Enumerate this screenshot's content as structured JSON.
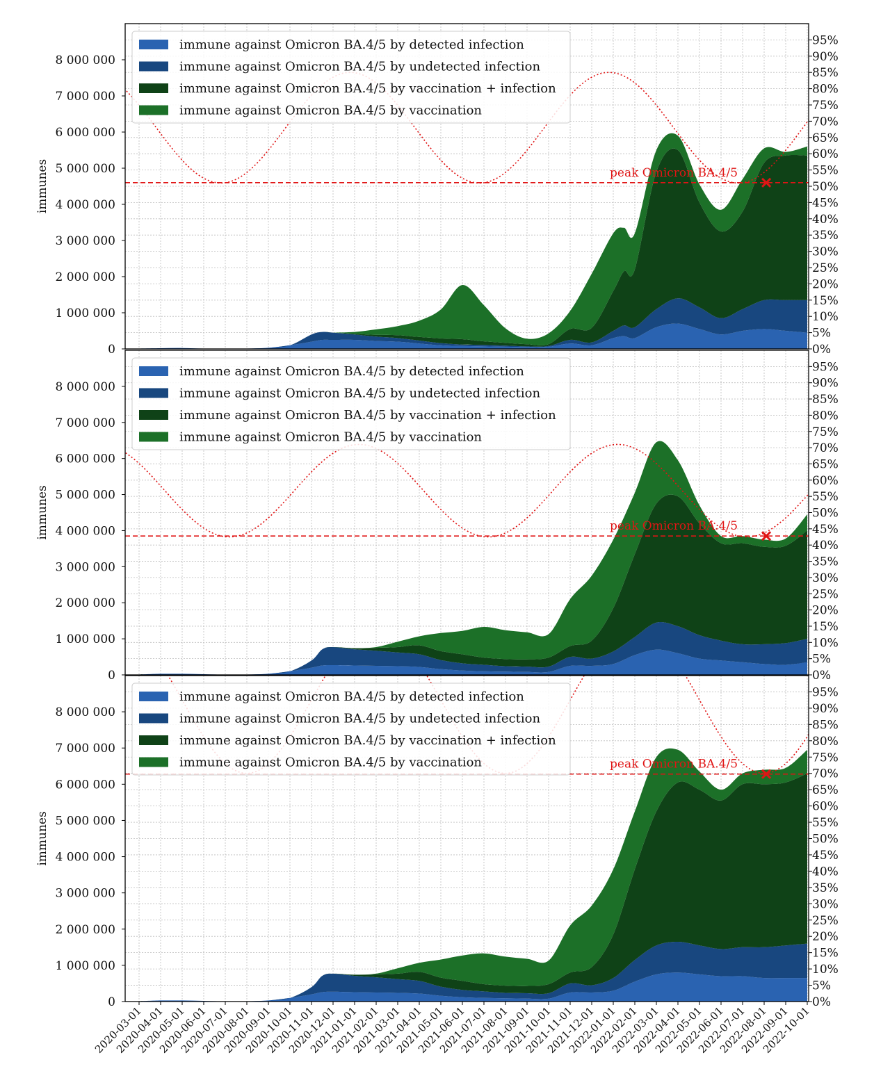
{
  "colors": {
    "detected": "#2a63b1",
    "undetected": "#18477f",
    "vacc_infection": "#0f4217",
    "vaccination": "#1c7028",
    "peak": "#e01515",
    "grid": "#bcbcbc"
  },
  "legend_labels": [
    "immune against Omicron BA.4/5 by detected infection",
    "immune against Omicron BA.4/5 by undetected infection",
    "immune against Omicron BA.4/5 by vaccination + infection",
    "immune against Omicron BA.4/5 by vaccination"
  ],
  "x_ticks": [
    "2020-03-01",
    "2020-04-01",
    "2020-05-01",
    "2020-06-01",
    "2020-07-01",
    "2020-08-01",
    "2020-09-01",
    "2020-10-01",
    "2020-11-01",
    "2020-12-01",
    "2021-01-01",
    "2021-02-01",
    "2021-03-01",
    "2021-04-01",
    "2021-05-01",
    "2021-06-01",
    "2021-07-01",
    "2021-08-01",
    "2021-09-01",
    "2021-10-01",
    "2021-11-01",
    "2021-12-01",
    "2022-01-01",
    "2022-02-01",
    "2022-03-01",
    "2022-04-01",
    "2022-05-01",
    "2022-06-01",
    "2022-07-01",
    "2022-08-01",
    "2022-09-01",
    "2022-10-01"
  ],
  "y_ticks": [
    "0",
    "1 000 000",
    "2 000 000",
    "3 000 000",
    "4 000 000",
    "5 000 000",
    "6 000 000",
    "7 000 000",
    "8 000 000"
  ],
  "pct_ticks": [
    "0%",
    "5%",
    "10%",
    "15%",
    "20%",
    "25%",
    "30%",
    "35%",
    "40%",
    "45%",
    "50%",
    "55%",
    "60%",
    "65%",
    "70%",
    "75%",
    "80%",
    "85%",
    "90%",
    "95%"
  ],
  "chart_data": [
    {
      "type": "area",
      "title": "",
      "ylabel": "immunes",
      "ylim": [
        0,
        9000000
      ],
      "y2lim": [
        0,
        1
      ],
      "stacked": true,
      "x_months": [
        0,
        1,
        2,
        3,
        4,
        5,
        6,
        7,
        8,
        8.5,
        9,
        10,
        11,
        12,
        13,
        14,
        15,
        16,
        17,
        18,
        19,
        20,
        21,
        22,
        22.5,
        23,
        24,
        25,
        26,
        27,
        28,
        29,
        30,
        31
      ],
      "series": [
        {
          "name": "immune against Omicron BA.4/5 by detected infection",
          "values": [
            10000,
            20000,
            25000,
            10000,
            5000,
            10000,
            30000,
            100000,
            200000,
            250000,
            250000,
            250000,
            220000,
            200000,
            150000,
            100000,
            80000,
            70000,
            60000,
            50000,
            60000,
            150000,
            100000,
            300000,
            350000,
            300000,
            600000,
            700000,
            550000,
            400000,
            500000,
            550000,
            500000,
            450000
          ]
        },
        {
          "name": "immune against Omicron BA.4/5 by undetected infection",
          "values": [
            0,
            0,
            0,
            0,
            0,
            0,
            0,
            0,
            200000,
            220000,
            200000,
            150000,
            120000,
            100000,
            80000,
            60000,
            40000,
            40000,
            30000,
            20000,
            20000,
            100000,
            80000,
            200000,
            300000,
            300000,
            500000,
            700000,
            600000,
            450000,
            600000,
            800000,
            850000,
            900000
          ]
        },
        {
          "name": "immune against Omicron BA.4/5 by vaccination + infection",
          "values": [
            0,
            0,
            0,
            0,
            0,
            0,
            0,
            0,
            0,
            0,
            0,
            20000,
            50000,
            80000,
            100000,
            130000,
            150000,
            100000,
            80000,
            60000,
            50000,
            300000,
            400000,
            1100000,
            1500000,
            1600000,
            3800000,
            4100000,
            2900000,
            2400000,
            2700000,
            3800000,
            4000000,
            4000000
          ]
        },
        {
          "name": "immune against Omicron BA.4/5 by vaccination",
          "values": [
            0,
            0,
            0,
            0,
            0,
            0,
            0,
            0,
            0,
            0,
            0,
            50000,
            150000,
            250000,
            450000,
            800000,
            1500000,
            1000000,
            400000,
            150000,
            300000,
            500000,
            1500000,
            1600000,
            1200000,
            1000000,
            600000,
            400000,
            500000,
            600000,
            900000,
            400000,
            100000,
            250000
          ]
        }
      ],
      "threshold": {
        "label": "peak Omicron BA.4/5",
        "value": 4600000,
        "peak_x": 29.1
      },
      "seasonal_curve": {
        "min_fraction": 0.51,
        "max_fraction": 0.85,
        "period_months": 12,
        "min_at_month": 3.8
      }
    },
    {
      "type": "area",
      "title": "",
      "ylabel": "immunes",
      "ylim": [
        0,
        9000000
      ],
      "y2lim": [
        0,
        1
      ],
      "stacked": true,
      "x_months": [
        0,
        1,
        2,
        3,
        4,
        5,
        6,
        7,
        8,
        8.5,
        9,
        10,
        11,
        12,
        13,
        14,
        15,
        16,
        17,
        18,
        19,
        20,
        21,
        22,
        23,
        24,
        25,
        26,
        27,
        28,
        29,
        30,
        31
      ],
      "series": [
        {
          "name": "immune against Omicron BA.4/5 by detected infection",
          "values": [
            10000,
            30000,
            30000,
            20000,
            5000,
            10000,
            30000,
            100000,
            200000,
            260000,
            270000,
            260000,
            250000,
            240000,
            220000,
            160000,
            120000,
            100000,
            90000,
            80000,
            80000,
            250000,
            250000,
            300000,
            550000,
            700000,
            600000,
            450000,
            400000,
            350000,
            300000,
            280000,
            350000
          ]
        },
        {
          "name": "immune against Omicron BA.4/5 by undetected infection",
          "values": [
            0,
            0,
            0,
            0,
            0,
            0,
            0,
            0,
            200000,
            450000,
            500000,
            450000,
            420000,
            380000,
            350000,
            250000,
            200000,
            180000,
            150000,
            150000,
            150000,
            250000,
            200000,
            350000,
            500000,
            750000,
            750000,
            650000,
            550000,
            500000,
            550000,
            600000,
            650000
          ]
        },
        {
          "name": "immune against Omicron BA.4/5 by vaccination + infection",
          "values": [
            0,
            0,
            0,
            0,
            0,
            0,
            0,
            0,
            0,
            0,
            0,
            30000,
            80000,
            150000,
            250000,
            250000,
            250000,
            200000,
            200000,
            200000,
            250000,
            300000,
            500000,
            1200000,
            2300000,
            3300000,
            3600000,
            3100000,
            2700000,
            2800000,
            2700000,
            2700000,
            3000000
          ]
        },
        {
          "name": "immune against Omicron BA.4/5 by vaccination",
          "values": [
            0,
            0,
            0,
            0,
            0,
            0,
            0,
            0,
            0,
            0,
            0,
            0,
            20000,
            150000,
            250000,
            500000,
            650000,
            850000,
            800000,
            750000,
            650000,
            1300000,
            1800000,
            1900000,
            1700000,
            1700000,
            1000000,
            500000,
            200000,
            200000,
            200000,
            200000,
            450000
          ]
        }
      ],
      "threshold": {
        "label": "peak Omicron BA.4/5",
        "value": 3850000,
        "peak_x": 29.1
      },
      "seasonal_curve": {
        "min_fraction": 0.425,
        "max_fraction": 0.71,
        "period_months": 12,
        "min_at_month": 4.2
      }
    },
    {
      "type": "area",
      "title": "",
      "ylabel": "immunes",
      "ylim": [
        0,
        9000000
      ],
      "y2lim": [
        0,
        1
      ],
      "stacked": true,
      "x_months": [
        0,
        1,
        2,
        3,
        4,
        5,
        6,
        7,
        8,
        8.5,
        9,
        10,
        11,
        12,
        13,
        14,
        15,
        16,
        17,
        18,
        19,
        20,
        21,
        22,
        23,
        24,
        25,
        26,
        27,
        28,
        29,
        30,
        31
      ],
      "series": [
        {
          "name": "immune against Omicron BA.4/5 by detected infection",
          "values": [
            10000,
            30000,
            30000,
            20000,
            5000,
            10000,
            30000,
            100000,
            200000,
            260000,
            270000,
            260000,
            250000,
            240000,
            220000,
            160000,
            120000,
            100000,
            90000,
            80000,
            80000,
            250000,
            250000,
            300000,
            550000,
            750000,
            800000,
            750000,
            700000,
            700000,
            650000,
            650000,
            650000
          ]
        },
        {
          "name": "immune against Omicron BA.4/5 by undetected infection",
          "values": [
            0,
            0,
            0,
            0,
            0,
            0,
            0,
            0,
            200000,
            450000,
            500000,
            450000,
            420000,
            380000,
            350000,
            250000,
            200000,
            180000,
            150000,
            150000,
            150000,
            250000,
            200000,
            350000,
            600000,
            800000,
            850000,
            800000,
            750000,
            800000,
            850000,
            900000,
            950000
          ]
        },
        {
          "name": "immune against Omicron BA.4/5 by vaccination + infection",
          "values": [
            0,
            0,
            0,
            0,
            0,
            0,
            0,
            0,
            0,
            0,
            0,
            30000,
            80000,
            150000,
            250000,
            250000,
            250000,
            200000,
            200000,
            200000,
            250000,
            300000,
            500000,
            1200000,
            2500000,
            3700000,
            4400000,
            4300000,
            4100000,
            4500000,
            4500000,
            4500000,
            4700000
          ]
        },
        {
          "name": "immune against Omicron BA.4/5 by vaccination",
          "values": [
            0,
            0,
            0,
            0,
            0,
            0,
            0,
            0,
            0,
            0,
            0,
            0,
            20000,
            150000,
            250000,
            500000,
            700000,
            850000,
            800000,
            750000,
            650000,
            1300000,
            1700000,
            1800000,
            1600000,
            1500000,
            900000,
            500000,
            300000,
            300000,
            400000,
            400000,
            650000
          ]
        }
      ],
      "threshold": {
        "label": "peak Omicron BA.4/5",
        "value": 6280000,
        "peak_x": 29.1
      },
      "seasonal_curve": {
        "min_fraction": 0.7,
        "max_fraction": 1.15,
        "period_months": 12,
        "min_at_month": 5.0
      }
    }
  ]
}
